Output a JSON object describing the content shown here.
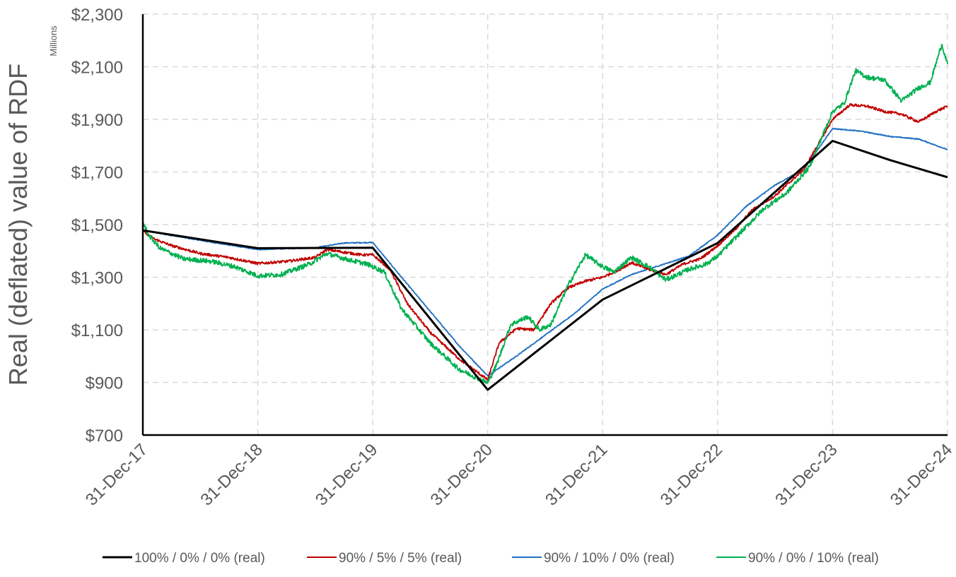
{
  "chart_data": {
    "type": "line",
    "title": "",
    "ylabel": "Real (deflated) value of RDF",
    "y_unit_label": "Millions",
    "ylim": [
      700,
      2300
    ],
    "y_ticks": [
      700,
      900,
      1100,
      1300,
      1500,
      1700,
      1900,
      2100,
      2300
    ],
    "y_tick_labels": [
      "$700",
      "$900",
      "$1,100",
      "$1,300",
      "$1,500",
      "$1,700",
      "$1,900",
      "$2,100",
      "$2,300"
    ],
    "x_tick_labels": [
      "31-Dec-17",
      "31-Dec-18",
      "31-Dec-19",
      "31-Dec-20",
      "31-Dec-21",
      "31-Dec-22",
      "31-Dec-23",
      "31-Dec-24"
    ],
    "x_tick_positions": [
      2017.0,
      2018.0,
      2019.0,
      2020.0,
      2021.0,
      2022.0,
      2023.0,
      2024.0
    ],
    "xlim": [
      2017.0,
      2024.0
    ],
    "grid": true,
    "legend_position": "bottom",
    "series": [
      {
        "name": "100% / 0% / 0% (real)",
        "color": "#000000",
        "x": [
          2017.0,
          2018.0,
          2019.0,
          2020.0,
          2021.0,
          2022.0,
          2023.0,
          2023.5,
          2024.0
        ],
        "y": [
          1478,
          1410,
          1412,
          872,
          1215,
          1430,
          1818,
          1745,
          1680
        ]
      },
      {
        "name": "90% / 5% / 5% (real)",
        "color": "#c00000",
        "x": [
          2017.0,
          2017.1,
          2017.25,
          2017.5,
          2017.75,
          2018.0,
          2018.25,
          2018.5,
          2018.6,
          2018.75,
          2018.9,
          2019.0,
          2019.15,
          2019.3,
          2019.5,
          2019.75,
          2020.0,
          2020.1,
          2020.25,
          2020.4,
          2020.55,
          2020.7,
          2020.85,
          2021.0,
          2021.15,
          2021.25,
          2021.4,
          2021.55,
          2021.7,
          2021.85,
          2022.0,
          2022.15,
          2022.3,
          2022.5,
          2022.75,
          2023.0,
          2023.15,
          2023.3,
          2023.45,
          2023.6,
          2023.75,
          2023.9,
          2024.0
        ],
        "y": [
          1475,
          1445,
          1420,
          1390,
          1375,
          1352,
          1360,
          1375,
          1405,
          1395,
          1385,
          1385,
          1330,
          1200,
          1090,
          990,
          910,
          1050,
          1105,
          1100,
          1200,
          1260,
          1285,
          1300,
          1330,
          1355,
          1330,
          1310,
          1350,
          1370,
          1420,
          1480,
          1555,
          1610,
          1710,
          1900,
          1955,
          1950,
          1930,
          1920,
          1890,
          1930,
          1950
        ]
      },
      {
        "name": "90% / 10% / 0% (real)",
        "color": "#1f6fc2",
        "x": [
          2017.0,
          2017.5,
          2018.0,
          2018.5,
          2018.75,
          2019.0,
          2019.25,
          2019.5,
          2019.75,
          2020.0,
          2020.25,
          2020.5,
          2020.75,
          2021.0,
          2021.25,
          2021.5,
          2021.75,
          2022.0,
          2022.25,
          2022.5,
          2022.75,
          2023.0,
          2023.25,
          2023.5,
          2023.75,
          2024.0
        ],
        "y": [
          1478,
          1440,
          1405,
          1412,
          1430,
          1432,
          1300,
          1170,
          1040,
          925,
          1000,
          1080,
          1160,
          1255,
          1310,
          1345,
          1380,
          1460,
          1570,
          1650,
          1710,
          1865,
          1855,
          1835,
          1825,
          1785
        ]
      },
      {
        "name": "90% / 0% / 10% (real)",
        "color": "#00b050",
        "x": [
          2017.0,
          2017.05,
          2017.15,
          2017.35,
          2017.6,
          2017.8,
          2018.0,
          2018.2,
          2018.45,
          2018.6,
          2018.8,
          2018.95,
          2019.1,
          2019.25,
          2019.5,
          2019.75,
          2020.0,
          2020.08,
          2020.2,
          2020.35,
          2020.45,
          2020.55,
          2020.7,
          2020.85,
          2021.0,
          2021.1,
          2021.25,
          2021.4,
          2021.55,
          2021.75,
          2021.9,
          2022.0,
          2022.2,
          2022.4,
          2022.6,
          2022.8,
          2023.0,
          2023.1,
          2023.2,
          2023.3,
          2023.45,
          2023.6,
          2023.75,
          2023.85,
          2023.95,
          2024.0
        ],
        "y": [
          1510,
          1460,
          1410,
          1370,
          1360,
          1340,
          1305,
          1310,
          1350,
          1390,
          1365,
          1350,
          1320,
          1180,
          1050,
          950,
          898,
          970,
          1120,
          1150,
          1100,
          1120,
          1270,
          1385,
          1340,
          1320,
          1375,
          1340,
          1290,
          1330,
          1350,
          1380,
          1470,
          1560,
          1620,
          1720,
          1930,
          1960,
          2085,
          2060,
          2050,
          1970,
          2020,
          2040,
          2185,
          2110
        ]
      }
    ]
  }
}
